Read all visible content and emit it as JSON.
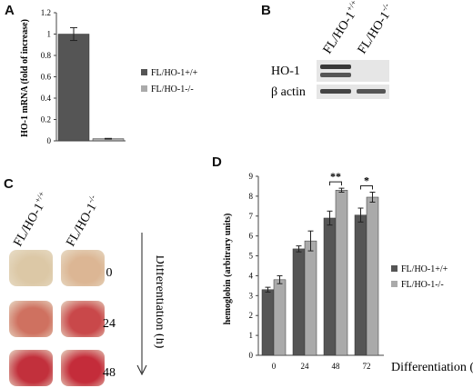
{
  "panels": {
    "a": "A",
    "b": "B",
    "c": "C",
    "d": "D"
  },
  "panel_b": {
    "lanes": [
      {
        "label": "FL/HO-1",
        "sup": "+/+"
      },
      {
        "label": "FL/HO-1",
        "sup": "-/-"
      }
    ],
    "rows": [
      "HO-1",
      "β actin"
    ]
  },
  "panel_c": {
    "columns": [
      {
        "label": "FL/HO-1",
        "sup": "+/+"
      },
      {
        "label": "FL/HO-1",
        "sup": "-/-"
      }
    ],
    "times": [
      "0",
      "24",
      "48"
    ],
    "axis_label": "Differentiation (h)",
    "plate_colors": [
      [
        "#dcc8a6",
        "#dcb694"
      ],
      [
        "#cf7160",
        "#c9484a"
      ],
      [
        "#c2303c",
        "#c42c3a"
      ]
    ]
  },
  "chart_data": [
    {
      "type": "bar",
      "panel": "A",
      "categories": [
        "FL/HO-1+/+",
        "FL/HO-1-/-"
      ],
      "series": [
        {
          "name": "FL/HO-1+/+",
          "color": "#555555",
          "values": [
            1.0,
            null
          ],
          "errors": [
            0.06,
            null
          ]
        },
        {
          "name": "FL/HO-1-/-",
          "color": "#aaaaaa",
          "values": [
            null,
            0.02
          ],
          "errors": [
            null,
            0.003
          ]
        }
      ],
      "ylabel": "HO-1 mRNA (fold of increase)",
      "ylim": [
        0,
        1.2
      ],
      "yticks": [
        "0",
        "0.2",
        "0.4",
        "0.6",
        "0.8",
        "1",
        "1.2"
      ],
      "legend": [
        "FL/HO-1+/+",
        "FL/HO-1-/-"
      ],
      "legend_position": "right",
      "grid": false
    },
    {
      "type": "bar",
      "panel": "D",
      "categories": [
        "0",
        "24",
        "48",
        "72"
      ],
      "series": [
        {
          "name": "FL/HO-1+/+",
          "color": "#555555",
          "values": [
            3.3,
            5.35,
            6.9,
            7.05
          ],
          "errors": [
            0.12,
            0.15,
            0.35,
            0.35
          ]
        },
        {
          "name": "FL/HO-1-/-",
          "color": "#aaaaaa",
          "values": [
            3.8,
            5.75,
            8.3,
            7.95
          ],
          "errors": [
            0.2,
            0.5,
            0.1,
            0.25
          ]
        }
      ],
      "xlabel": "Differentiation (h)",
      "ylabel": "hemoglobin (arbitrary units)",
      "ylim": [
        0,
        9
      ],
      "yticks": [
        "0",
        "1",
        "2",
        "3",
        "4",
        "5",
        "6",
        "7",
        "8",
        "9"
      ],
      "significance": [
        {
          "category": "48",
          "label": "**"
        },
        {
          "category": "72",
          "label": "*"
        }
      ],
      "legend": [
        "FL/HO-1+/+",
        "FL/HO-1-/-"
      ],
      "legend_position": "right",
      "grid": false
    }
  ]
}
